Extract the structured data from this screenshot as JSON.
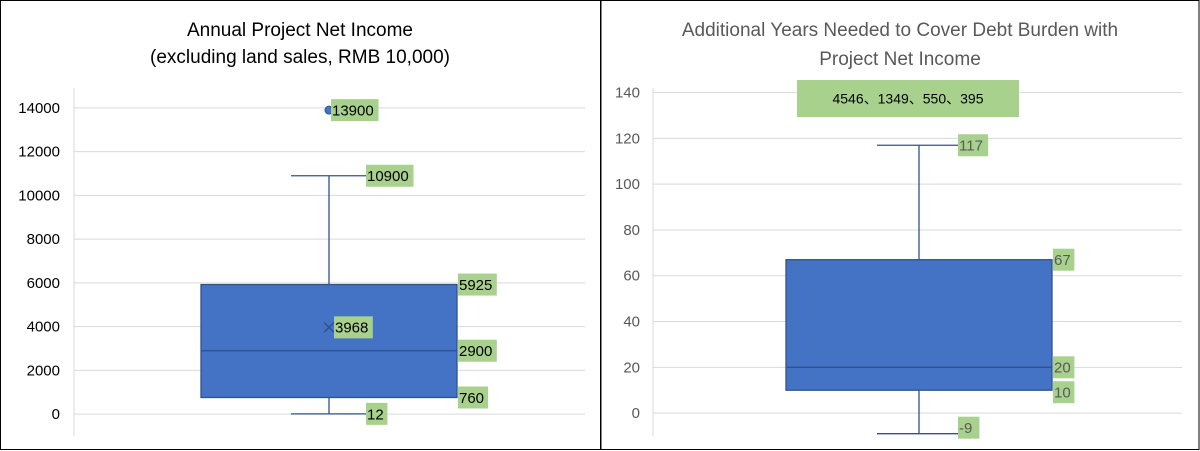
{
  "chart_data": [
    {
      "type": "box",
      "title": "Annual Project Net Income",
      "subtitle": "(excluding land sales, RMB 10,000)",
      "ylim": [
        -1000,
        14500
      ],
      "yticks": [
        0,
        2000,
        4000,
        6000,
        8000,
        10000,
        12000,
        14000
      ],
      "grid": true,
      "box": {
        "min": 12,
        "q1": 760,
        "median": 2900,
        "mean": 3968,
        "q3": 5925,
        "max": 10900
      },
      "outliers": [
        13900
      ],
      "labels": {
        "max": "10900",
        "q3": "5925",
        "mean": "3968",
        "median": "2900",
        "q1": "760",
        "min": "12",
        "outlier": "13900"
      }
    },
    {
      "type": "box",
      "title": "Additional Years Needed to Cover Debt Burden with",
      "subtitle": "Project Net Income",
      "ylim": [
        -10,
        142
      ],
      "yticks": [
        0,
        20,
        40,
        60,
        80,
        100,
        120,
        140
      ],
      "grid": true,
      "box": {
        "min": -9,
        "q1": 10,
        "median": 20,
        "q3": 67,
        "max": 117
      },
      "labels": {
        "max": "117",
        "q3": "67",
        "median": "20",
        "q1": "10",
        "min": "-9"
      },
      "annotation": "4546、1349、550、395"
    }
  ]
}
